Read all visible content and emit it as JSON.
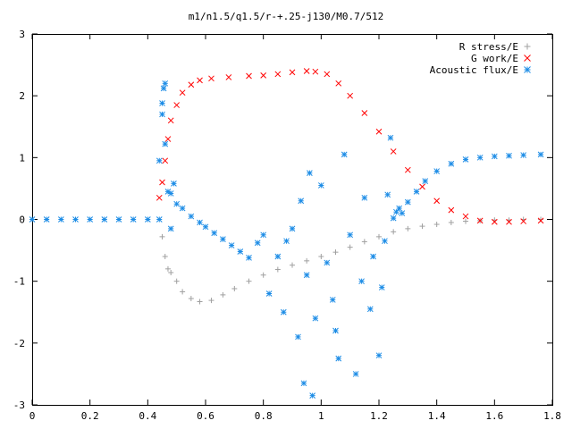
{
  "chart_data": {
    "type": "scatter",
    "title": "m1/n1.5/q1.5/r-+.25-j130/M0.7/512",
    "xlabel": "",
    "ylabel": "",
    "xlim": [
      0,
      1.8
    ],
    "ylim": [
      -3,
      3
    ],
    "x_ticks": [
      "0",
      "0.2",
      "0.4",
      "0.6",
      "0.8",
      "1",
      "1.2",
      "1.4",
      "1.6",
      "1.8"
    ],
    "y_ticks": [
      "3",
      "2",
      "1",
      "0",
      "-1",
      "-2",
      "-3"
    ],
    "grid": false,
    "legend_position": "top-right",
    "series": [
      {
        "name": "R stress/E",
        "marker": "+",
        "color": "#a0a0a0",
        "points": [
          [
            0.45,
            -0.28
          ],
          [
            0.46,
            -0.6
          ],
          [
            0.47,
            -0.8
          ],
          [
            0.48,
            -0.86
          ],
          [
            0.5,
            -1.0
          ],
          [
            0.52,
            -1.17
          ],
          [
            0.55,
            -1.28
          ],
          [
            0.58,
            -1.33
          ],
          [
            0.62,
            -1.31
          ],
          [
            0.66,
            -1.22
          ],
          [
            0.7,
            -1.12
          ],
          [
            0.75,
            -1.0
          ],
          [
            0.8,
            -0.9
          ],
          [
            0.85,
            -0.81
          ],
          [
            0.9,
            -0.74
          ],
          [
            0.95,
            -0.67
          ],
          [
            1.0,
            -0.6
          ],
          [
            1.05,
            -0.53
          ],
          [
            1.1,
            -0.45
          ],
          [
            1.15,
            -0.36
          ],
          [
            1.2,
            -0.28
          ],
          [
            1.25,
            -0.2
          ],
          [
            1.3,
            -0.15
          ],
          [
            1.35,
            -0.11
          ],
          [
            1.4,
            -0.08
          ],
          [
            1.45,
            -0.05
          ],
          [
            1.5,
            -0.03
          ],
          [
            1.55,
            -0.02
          ],
          [
            1.6,
            -0.01
          ],
          [
            1.65,
            -0.01
          ],
          [
            1.7,
            0.0
          ],
          [
            1.76,
            0.0
          ]
        ]
      },
      {
        "name": "G work/E",
        "marker": "x",
        "color": "#ff0000",
        "points": [
          [
            0.44,
            0.35
          ],
          [
            0.45,
            0.6
          ],
          [
            0.46,
            0.95
          ],
          [
            0.47,
            1.3
          ],
          [
            0.48,
            1.6
          ],
          [
            0.5,
            1.85
          ],
          [
            0.52,
            2.05
          ],
          [
            0.55,
            2.18
          ],
          [
            0.58,
            2.25
          ],
          [
            0.62,
            2.28
          ],
          [
            0.68,
            2.3
          ],
          [
            0.75,
            2.32
          ],
          [
            0.8,
            2.33
          ],
          [
            0.85,
            2.35
          ],
          [
            0.9,
            2.38
          ],
          [
            0.95,
            2.4
          ],
          [
            0.98,
            2.39
          ],
          [
            1.02,
            2.35
          ],
          [
            1.06,
            2.2
          ],
          [
            1.1,
            2.0
          ],
          [
            1.15,
            1.72
          ],
          [
            1.2,
            1.42
          ],
          [
            1.25,
            1.1
          ],
          [
            1.3,
            0.8
          ],
          [
            1.35,
            0.53
          ],
          [
            1.4,
            0.3
          ],
          [
            1.45,
            0.15
          ],
          [
            1.5,
            0.05
          ],
          [
            1.55,
            -0.02
          ],
          [
            1.6,
            -0.04
          ],
          [
            1.65,
            -0.04
          ],
          [
            1.7,
            -0.03
          ],
          [
            1.76,
            -0.02
          ]
        ]
      },
      {
        "name": "Acoustic flux/E",
        "marker": "*",
        "color": "#1c8ce6",
        "points": [
          [
            0.0,
            0.0
          ],
          [
            0.05,
            0.0
          ],
          [
            0.1,
            0.0
          ],
          [
            0.15,
            0.0
          ],
          [
            0.2,
            0.0
          ],
          [
            0.25,
            0.0
          ],
          [
            0.3,
            0.0
          ],
          [
            0.35,
            0.0
          ],
          [
            0.4,
            0.0
          ],
          [
            0.44,
            0.0
          ],
          [
            0.44,
            0.95
          ],
          [
            0.45,
            1.7
          ],
          [
            0.45,
            1.88
          ],
          [
            0.455,
            2.12
          ],
          [
            0.46,
            2.2
          ],
          [
            0.46,
            1.22
          ],
          [
            0.47,
            0.45
          ],
          [
            0.48,
            0.42
          ],
          [
            0.48,
            -0.15
          ],
          [
            0.49,
            0.58
          ],
          [
            0.5,
            0.25
          ],
          [
            0.52,
            0.18
          ],
          [
            0.55,
            0.05
          ],
          [
            0.58,
            -0.05
          ],
          [
            0.6,
            -0.12
          ],
          [
            0.63,
            -0.22
          ],
          [
            0.66,
            -0.32
          ],
          [
            0.69,
            -0.42
          ],
          [
            0.72,
            -0.52
          ],
          [
            0.75,
            -0.62
          ],
          [
            0.78,
            -0.38
          ],
          [
            0.8,
            -0.25
          ],
          [
            0.82,
            -1.2
          ],
          [
            0.85,
            -0.6
          ],
          [
            0.87,
            -1.5
          ],
          [
            0.88,
            -0.35
          ],
          [
            0.9,
            -0.15
          ],
          [
            0.92,
            -1.9
          ],
          [
            0.93,
            0.3
          ],
          [
            0.94,
            -2.65
          ],
          [
            0.95,
            -0.9
          ],
          [
            0.96,
            0.75
          ],
          [
            0.97,
            -2.85
          ],
          [
            0.98,
            -1.6
          ],
          [
            1.0,
            0.55
          ],
          [
            1.02,
            -0.7
          ],
          [
            1.04,
            -1.3
          ],
          [
            1.05,
            -1.8
          ],
          [
            1.06,
            -2.25
          ],
          [
            1.08,
            1.05
          ],
          [
            1.1,
            -0.25
          ],
          [
            1.12,
            -2.5
          ],
          [
            1.14,
            -1.0
          ],
          [
            1.15,
            0.35
          ],
          [
            1.17,
            -1.45
          ],
          [
            1.18,
            -0.6
          ],
          [
            1.2,
            -2.2
          ],
          [
            1.21,
            -1.1
          ],
          [
            1.22,
            -0.35
          ],
          [
            1.23,
            0.4
          ],
          [
            1.24,
            1.32
          ],
          [
            1.25,
            0.02
          ],
          [
            1.26,
            0.12
          ],
          [
            1.27,
            0.18
          ],
          [
            1.28,
            0.1
          ],
          [
            1.3,
            0.28
          ],
          [
            1.33,
            0.45
          ],
          [
            1.36,
            0.62
          ],
          [
            1.4,
            0.78
          ],
          [
            1.45,
            0.9
          ],
          [
            1.5,
            0.97
          ],
          [
            1.55,
            1.0
          ],
          [
            1.6,
            1.02
          ],
          [
            1.65,
            1.03
          ],
          [
            1.7,
            1.04
          ],
          [
            1.76,
            1.05
          ]
        ]
      }
    ]
  }
}
